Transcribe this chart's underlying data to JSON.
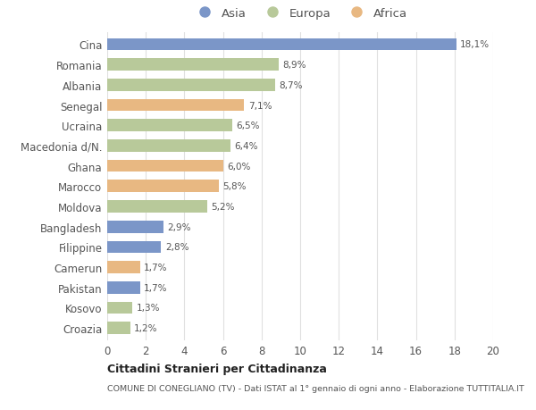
{
  "countries": [
    "Cina",
    "Romania",
    "Albania",
    "Senegal",
    "Ucraina",
    "Macedonia d/N.",
    "Ghana",
    "Marocco",
    "Moldova",
    "Bangladesh",
    "Filippine",
    "Camerun",
    "Pakistan",
    "Kosovo",
    "Croazia"
  ],
  "values": [
    18.1,
    8.9,
    8.7,
    7.1,
    6.5,
    6.4,
    6.0,
    5.8,
    5.2,
    2.9,
    2.8,
    1.7,
    1.7,
    1.3,
    1.2
  ],
  "labels": [
    "18,1%",
    "8,9%",
    "8,7%",
    "7,1%",
    "6,5%",
    "6,4%",
    "6,0%",
    "5,8%",
    "5,2%",
    "2,9%",
    "2,8%",
    "1,7%",
    "1,7%",
    "1,3%",
    "1,2%"
  ],
  "continents": [
    "Asia",
    "Europa",
    "Europa",
    "Africa",
    "Europa",
    "Europa",
    "Africa",
    "Africa",
    "Europa",
    "Asia",
    "Asia",
    "Africa",
    "Asia",
    "Europa",
    "Europa"
  ],
  "colors": {
    "Asia": "#7b96c8",
    "Europa": "#b8c99a",
    "Africa": "#e8b882"
  },
  "xlim": [
    0,
    20
  ],
  "xticks": [
    0,
    2,
    4,
    6,
    8,
    10,
    12,
    14,
    16,
    18,
    20
  ],
  "title": "Cittadini Stranieri per Cittadinanza",
  "subtitle": "COMUNE DI CONEGLIANO (TV) - Dati ISTAT al 1° gennaio di ogni anno - Elaborazione TUTTITALIA.IT",
  "bg_color": "#ffffff",
  "grid_color": "#e0e0e0",
  "bar_height": 0.6
}
